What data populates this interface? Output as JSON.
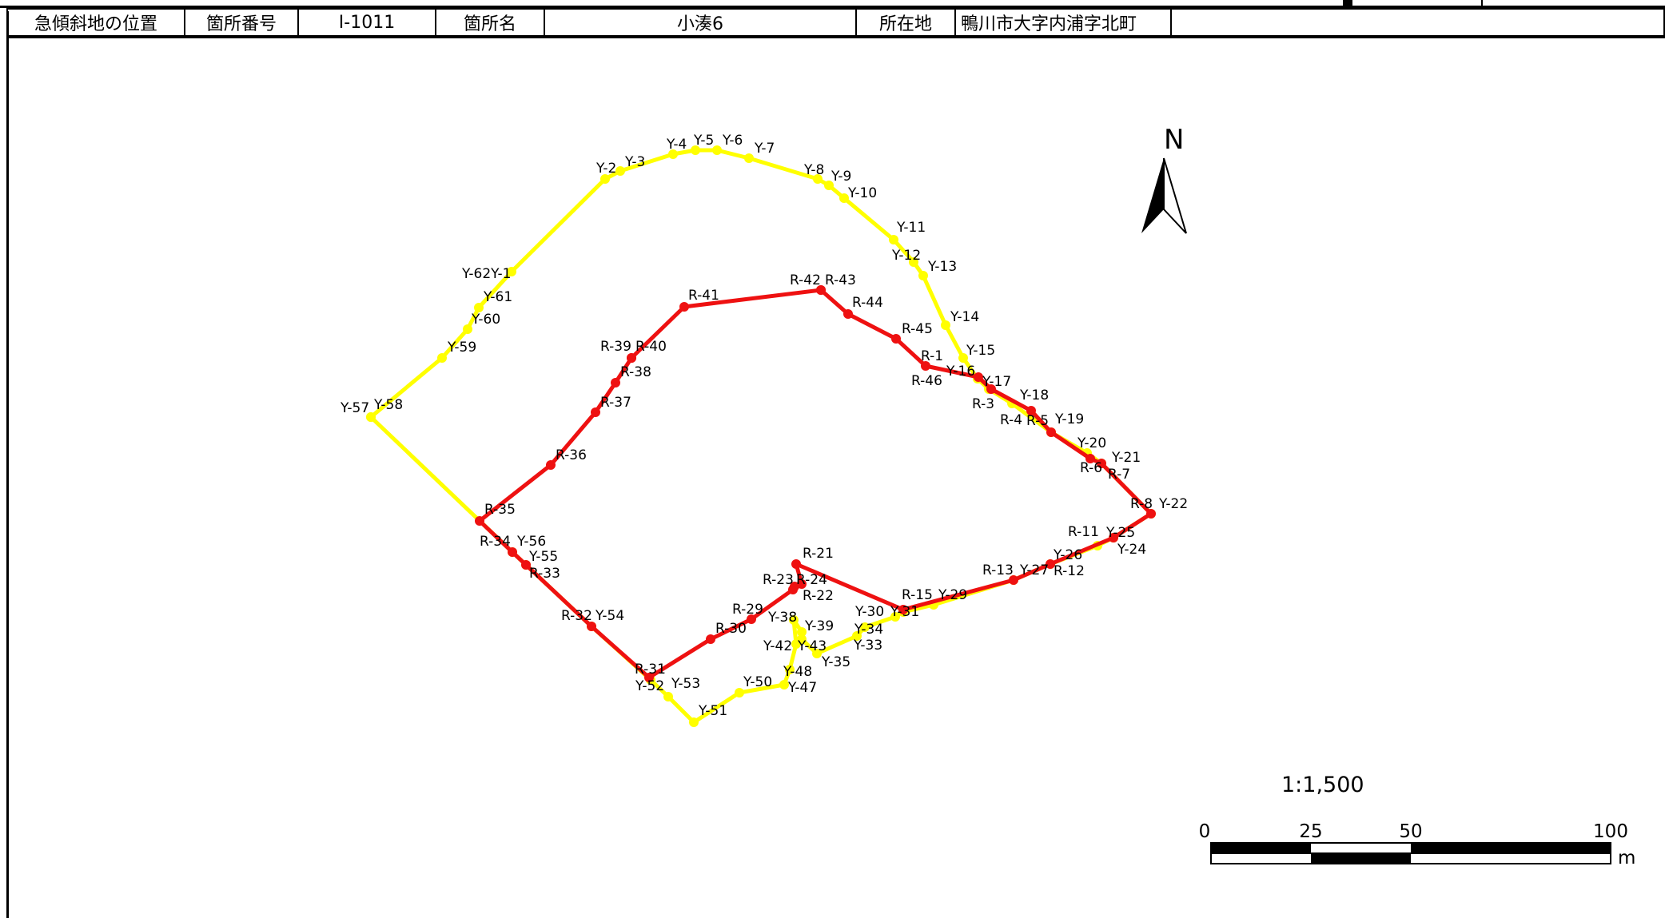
{
  "header": {
    "label_location": "急傾斜地の位置",
    "label_number": "箇所番号",
    "value_number": "I-1011",
    "label_name": "箇所名",
    "value_name": "小湊6",
    "label_address": "所在地",
    "value_address": "鴨川市大字内浦字北町"
  },
  "north_label": "N",
  "scale": {
    "ratio": "1:1,500",
    "ticks": [
      "0",
      "25",
      "50",
      "100"
    ],
    "unit": "m"
  },
  "colors": {
    "yellow": "#ffff00",
    "red": "#ee1111",
    "black": "#000000"
  },
  "yellow_points": [
    {
      "name": "Y-1",
      "label": "Y-62Y-1"
    },
    {
      "name": "Y-2",
      "label": "Y-2"
    },
    {
      "name": "Y-3",
      "label": "Y-3"
    },
    {
      "name": "Y-4",
      "label": "Y-4"
    },
    {
      "name": "Y-5",
      "label": "Y-5"
    },
    {
      "name": "Y-6",
      "label": "Y-6"
    },
    {
      "name": "Y-7",
      "label": "Y-7"
    },
    {
      "name": "Y-8",
      "label": "Y-8"
    },
    {
      "name": "Y-9",
      "label": "Y-9"
    },
    {
      "name": "Y-10",
      "label": "Y-10"
    },
    {
      "name": "Y-11",
      "label": "Y-11"
    },
    {
      "name": "Y-12",
      "label": "Y-12"
    },
    {
      "name": "Y-13",
      "label": "Y-13"
    },
    {
      "name": "Y-14",
      "label": "Y-14"
    },
    {
      "name": "Y-15",
      "label": "Y-15"
    },
    {
      "name": "Y-16",
      "label": "Y-16"
    },
    {
      "name": "Y-17",
      "label": "Y-17"
    },
    {
      "name": "Y-18",
      "label": "Y-18"
    },
    {
      "name": "Y-19",
      "label": "Y-19"
    },
    {
      "name": "Y-20",
      "label": "Y-20"
    },
    {
      "name": "Y-21",
      "label": "Y-21"
    },
    {
      "name": "Y-22",
      "label": "Y-22"
    },
    {
      "name": "Y-24",
      "label": "Y-24"
    },
    {
      "name": "Y-25",
      "label": "Y-25"
    },
    {
      "name": "Y-26",
      "label": "Y-26"
    },
    {
      "name": "Y-27",
      "label": "Y-27"
    },
    {
      "name": "Y-29",
      "label": "Y-29"
    },
    {
      "name": "Y-30",
      "label": "Y-30"
    },
    {
      "name": "Y-31",
      "label": "Y-31"
    },
    {
      "name": "Y-33",
      "label": "Y-33"
    },
    {
      "name": "Y-34",
      "label": "Y-34"
    },
    {
      "name": "Y-35",
      "label": "Y-35"
    },
    {
      "name": "Y-38",
      "label": "Y-38"
    },
    {
      "name": "Y-39",
      "label": "Y-39"
    },
    {
      "name": "Y-42",
      "label": "Y-42"
    },
    {
      "name": "Y-43",
      "label": "Y-43"
    },
    {
      "name": "Y-47",
      "label": "Y-47"
    },
    {
      "name": "Y-48",
      "label": "Y-48"
    },
    {
      "name": "Y-50",
      "label": "Y-50"
    },
    {
      "name": "Y-51",
      "label": "Y-51"
    },
    {
      "name": "Y-52",
      "label": "Y-52"
    },
    {
      "name": "Y-53",
      "label": "Y-53"
    },
    {
      "name": "Y-54",
      "label": "Y-54"
    },
    {
      "name": "Y-55",
      "label": "Y-55"
    },
    {
      "name": "Y-56",
      "label": "Y-56"
    },
    {
      "name": "Y-57",
      "label": "Y-57"
    },
    {
      "name": "Y-58",
      "label": "Y-58"
    },
    {
      "name": "Y-59",
      "label": "Y-59"
    },
    {
      "name": "Y-60",
      "label": "Y-60"
    },
    {
      "name": "Y-61",
      "label": "Y-61"
    }
  ],
  "red_points": [
    {
      "name": "R-1",
      "label": "R-1"
    },
    {
      "name": "R-3",
      "label": "R-3"
    },
    {
      "name": "R-4",
      "label": "R-4"
    },
    {
      "name": "R-5",
      "label": "R-5"
    },
    {
      "name": "R-6",
      "label": "R-6"
    },
    {
      "name": "R-7",
      "label": "R-7"
    },
    {
      "name": "R-8",
      "label": "R-8"
    },
    {
      "name": "R-11",
      "label": "R-11"
    },
    {
      "name": "R-12",
      "label": "R-12"
    },
    {
      "name": "R-13",
      "label": "R-13"
    },
    {
      "name": "R-15",
      "label": "R-15"
    },
    {
      "name": "R-21",
      "label": "R-21"
    },
    {
      "name": "R-22",
      "label": "R-22"
    },
    {
      "name": "R-23",
      "label": "R-23"
    },
    {
      "name": "R-24",
      "label": "R-24"
    },
    {
      "name": "R-29",
      "label": "R-29"
    },
    {
      "name": "R-30",
      "label": "R-30"
    },
    {
      "name": "R-31",
      "label": "R-31"
    },
    {
      "name": "R-32",
      "label": "R-32"
    },
    {
      "name": "R-33",
      "label": "R-33"
    },
    {
      "name": "R-34",
      "label": "R-34"
    },
    {
      "name": "R-35",
      "label": "R-35"
    },
    {
      "name": "R-36",
      "label": "R-36"
    },
    {
      "name": "R-37",
      "label": "R-37"
    },
    {
      "name": "R-38",
      "label": "R-38"
    },
    {
      "name": "R-39",
      "label": "R-39"
    },
    {
      "name": "R-40",
      "label": "R-40"
    },
    {
      "name": "R-41",
      "label": "R-41"
    },
    {
      "name": "R-42",
      "label": "R-42"
    },
    {
      "name": "R-43",
      "label": "R-43"
    },
    {
      "name": "R-44",
      "label": "R-44"
    },
    {
      "name": "R-45",
      "label": "R-45"
    },
    {
      "name": "R-46",
      "label": "R-46"
    }
  ]
}
